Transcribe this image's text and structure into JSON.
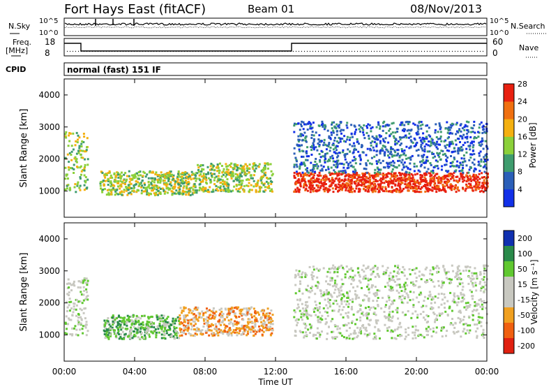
{
  "header": {
    "title": "Fort Hays East (fitACF)",
    "beam": "Beam 01",
    "date": "08/Nov/2013"
  },
  "top_panels": {
    "nsky_label": "N.Sky",
    "nsearch_label": "N.Search",
    "nsky_ticks": [
      "10^5",
      "10^0"
    ],
    "nsearch_ticks": [
      "10^5",
      "10^0"
    ],
    "freq_label": "Freq.",
    "freq_unit": "[MHz]",
    "freq_ticks": [
      "18",
      "8"
    ],
    "nave_label": "Nave",
    "nave_ticks": [
      "60",
      "0"
    ],
    "cpid_label": "CPID",
    "cpid_text": "normal (fast) 151 IF"
  },
  "chart_data": [
    {
      "type": "heatmap",
      "panel": "power",
      "ylabel": "Slant Range [km]",
      "y_ticks": [
        "1000",
        "2000",
        "3000",
        "4000"
      ],
      "ylim": [
        180,
        4500
      ],
      "x_range_hours": [
        0,
        24
      ],
      "colorbar_label": "Power [dB]",
      "colorbar_ticks": [
        "4",
        "8",
        "12",
        "16",
        "20",
        "24",
        "28"
      ],
      "colorbar_colors": [
        "#1230e8",
        "#2b5fb8",
        "#3f9c6e",
        "#8bd03a",
        "#f4b010",
        "#f07010",
        "#e82010"
      ],
      "bands": [
        {
          "t0": 0.0,
          "t1": 1.3,
          "r0": 1000,
          "r1": 2900,
          "level": 3
        },
        {
          "t0": 2.0,
          "t1": 7.5,
          "r0": 900,
          "r1": 1650,
          "level": 3
        },
        {
          "t0": 7.5,
          "t1": 11.8,
          "r0": 1000,
          "r1": 1900,
          "level": 3
        },
        {
          "t0": 13.0,
          "t1": 24.0,
          "r0": 1000,
          "r1": 1600,
          "level": 6
        },
        {
          "t0": 13.0,
          "t1": 24.0,
          "r0": 1600,
          "r1": 3200,
          "level": 1
        }
      ]
    },
    {
      "type": "heatmap",
      "panel": "velocity",
      "ylabel": "Slant Range [km]",
      "y_ticks": [
        "1000",
        "2000",
        "3000",
        "4000"
      ],
      "ylim": [
        180,
        4500
      ],
      "x_ticks": [
        "00:00",
        "04:00",
        "08:00",
        "12:00",
        "16:00",
        "20:00",
        "00:00"
      ],
      "xlabel": "Time UT",
      "colorbar_label": "Velocity [m s⁻¹]",
      "colorbar_ticks": [
        "200",
        "100",
        "50",
        "15",
        "-15",
        "-50",
        "-100",
        "-200"
      ],
      "colorbar_colors": [
        "#1030b0",
        "#2a8a4a",
        "#60c830",
        "#c8c8c0",
        "#c8c8c0",
        "#f0a020",
        "#f06010",
        "#e02010"
      ],
      "bands": [
        {
          "t0": 0.0,
          "t1": 1.3,
          "r0": 1000,
          "r1": 2800,
          "level": 3
        },
        {
          "t0": 2.2,
          "t1": 6.5,
          "r0": 900,
          "r1": 1650,
          "level": 2
        },
        {
          "t0": 6.5,
          "t1": 11.8,
          "r0": 1000,
          "r1": 1900,
          "level": 5
        },
        {
          "t0": 13.0,
          "t1": 24.0,
          "r0": 900,
          "r1": 3200,
          "level": 3
        }
      ]
    }
  ]
}
